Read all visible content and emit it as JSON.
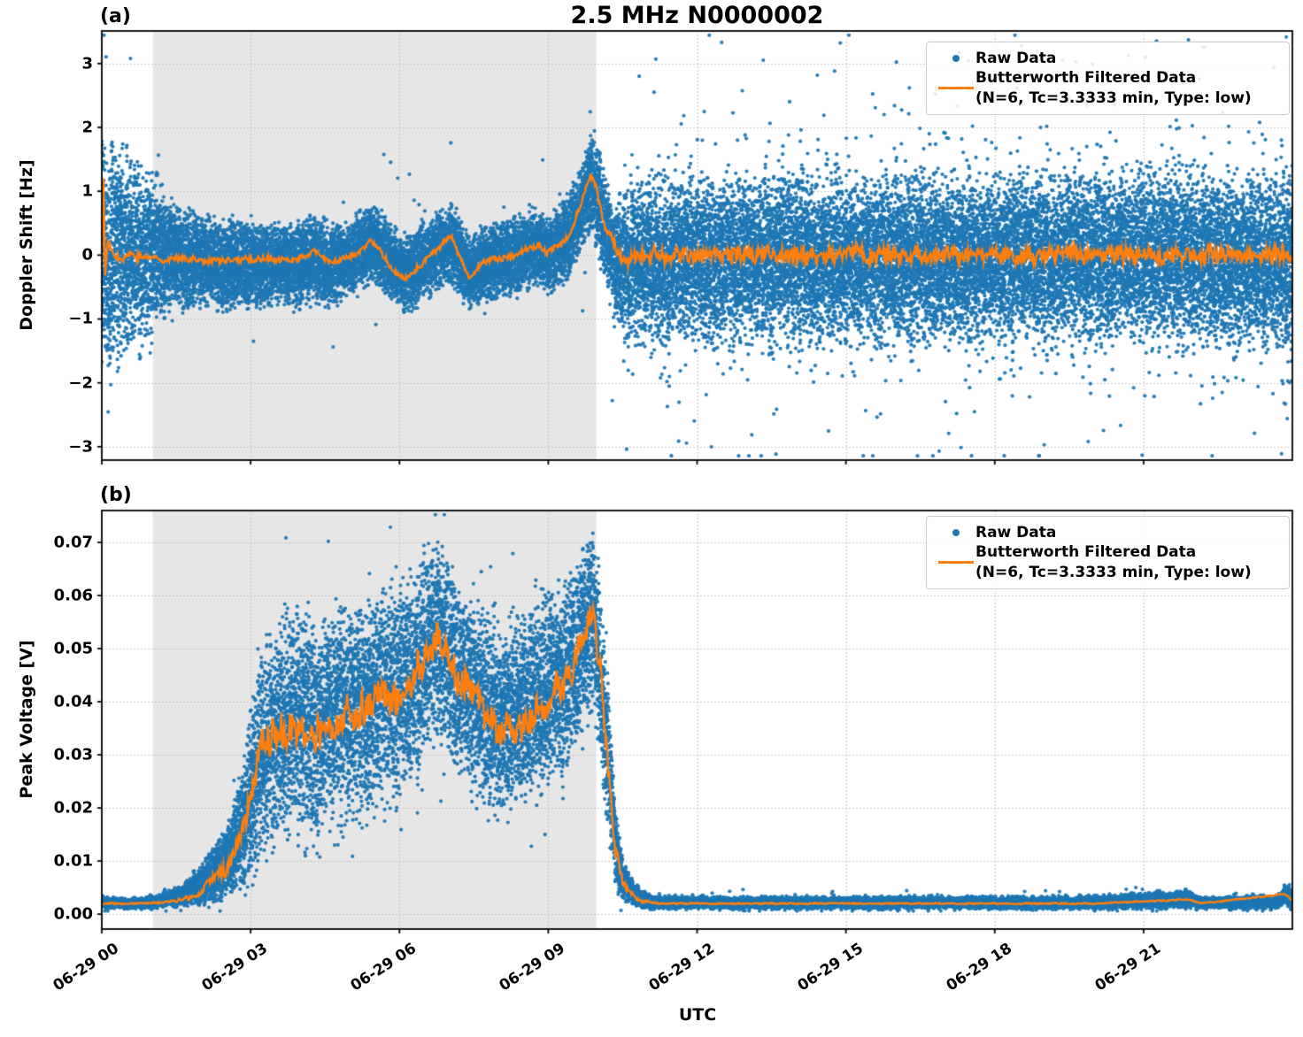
{
  "figure": {
    "background": "#ffffff",
    "title": "2.5 MHz N0000002"
  },
  "x_axis": {
    "label": "UTC",
    "xlim_hours": [
      0,
      24
    ],
    "ticks": [
      {
        "h": 0,
        "label": "06-29 00"
      },
      {
        "h": 3,
        "label": "06-29 03"
      },
      {
        "h": 6,
        "label": "06-29 06"
      },
      {
        "h": 9,
        "label": "06-29 09"
      },
      {
        "h": 12,
        "label": "06-29 12"
      },
      {
        "h": 15,
        "label": "06-29 15"
      },
      {
        "h": 18,
        "label": "06-29 18"
      },
      {
        "h": 21,
        "label": "06-29 21"
      }
    ]
  },
  "style": {
    "raw_color": "#1f77b4",
    "filtered_color": "#ff7f0e",
    "shade_color": "#e6e6e6",
    "grid_color": "#b9b9b9",
    "spine_color": "#000000"
  },
  "chart_data": [
    {
      "type": "scatter",
      "panel_label": "(a)",
      "title": "2.5 MHz N0000002",
      "ylabel": "Doppler Shift [Hz]",
      "ylim": [
        -3.21,
        3.51
      ],
      "grid": true,
      "legend_position": "upper right",
      "y_axis": {
        "ticks": [
          {
            "v": 3,
            "label": "3"
          },
          {
            "v": 2,
            "label": "2"
          },
          {
            "v": 1,
            "label": "1"
          },
          {
            "v": 0,
            "label": "0"
          },
          {
            "v": -1,
            "label": "−1"
          },
          {
            "v": -2,
            "label": "−2"
          },
          {
            "v": -3,
            "label": "−3"
          }
        ]
      },
      "shaded_region": {
        "t_start": 1.03,
        "t_end": 9.97
      },
      "legend": {
        "items": [
          {
            "marker": "dot",
            "label": "Raw Data"
          },
          {
            "marker": "line",
            "label": "Butterworth Filtered Data",
            "label2": "(N=6, Tc=3.3333 min, Type: low)"
          }
        ]
      },
      "series": {
        "raw_band_t_lo_hi": [
          [
            0,
            -2.15,
            2.0
          ],
          [
            0.3,
            -2.0,
            1.9
          ],
          [
            0.6,
            -1.85,
            1.8
          ],
          [
            0.9,
            -1.6,
            1.6
          ],
          [
            1.2,
            -1.25,
            1.25
          ],
          [
            1.5,
            -0.95,
            0.9
          ],
          [
            1.8,
            -0.8,
            0.65
          ],
          [
            2.2,
            -0.75,
            0.55
          ],
          [
            2.6,
            -0.9,
            0.55
          ],
          [
            3.0,
            -0.8,
            0.5
          ],
          [
            3.5,
            -0.75,
            0.45
          ],
          [
            4.0,
            -0.8,
            0.5
          ],
          [
            4.3,
            -0.62,
            0.6
          ],
          [
            4.6,
            -0.8,
            0.45
          ],
          [
            5.0,
            -0.65,
            0.5
          ],
          [
            5.45,
            -0.4,
            0.8
          ],
          [
            5.8,
            -0.65,
            0.45
          ],
          [
            6.1,
            -0.9,
            0.3
          ],
          [
            6.5,
            -0.65,
            0.45
          ],
          [
            7.05,
            -0.4,
            0.75
          ],
          [
            7.4,
            -0.85,
            0.3
          ],
          [
            7.8,
            -0.7,
            0.45
          ],
          [
            8.3,
            -0.6,
            0.55
          ],
          [
            8.68,
            -0.45,
            0.7
          ],
          [
            9.0,
            -0.55,
            0.6
          ],
          [
            9.3,
            -0.45,
            0.85
          ],
          [
            9.6,
            -0.2,
            1.2
          ],
          [
            9.87,
            0.45,
            1.9
          ],
          [
            10.0,
            0.1,
            1.6
          ],
          [
            10.15,
            -0.5,
            1.3
          ],
          [
            10.35,
            -1.2,
            0.9
          ],
          [
            10.6,
            -1.5,
            1.35
          ],
          [
            11.0,
            -1.6,
            1.45
          ],
          [
            12,
            -1.65,
            1.5
          ],
          [
            14,
            -1.65,
            1.55
          ],
          [
            16,
            -1.6,
            1.5
          ],
          [
            18,
            -1.65,
            1.5
          ],
          [
            20,
            -1.6,
            1.55
          ],
          [
            22,
            -1.65,
            1.5
          ],
          [
            24,
            -1.65,
            1.55
          ]
        ],
        "filtered_t_mean": [
          [
            0,
            -0.1
          ],
          [
            0.03,
            1.25
          ],
          [
            0.07,
            -0.35
          ],
          [
            0.12,
            0.15
          ],
          [
            0.3,
            -0.05
          ],
          [
            0.6,
            0.0
          ],
          [
            1.0,
            -0.05
          ],
          [
            1.5,
            -0.05
          ],
          [
            2.0,
            -0.08
          ],
          [
            2.5,
            -0.1
          ],
          [
            3.0,
            -0.05
          ],
          [
            3.5,
            -0.08
          ],
          [
            4.0,
            -0.05
          ],
          [
            4.3,
            0.05
          ],
          [
            4.6,
            -0.1
          ],
          [
            5.0,
            -0.05
          ],
          [
            5.45,
            0.22
          ],
          [
            5.7,
            -0.05
          ],
          [
            6.1,
            -0.4
          ],
          [
            6.5,
            -0.1
          ],
          [
            7.05,
            0.3
          ],
          [
            7.4,
            -0.38
          ],
          [
            7.7,
            -0.1
          ],
          [
            8.0,
            -0.05
          ],
          [
            8.3,
            0.0
          ],
          [
            8.68,
            0.16
          ],
          [
            9.0,
            0.07
          ],
          [
            9.3,
            0.18
          ],
          [
            9.5,
            0.45
          ],
          [
            9.7,
            0.9
          ],
          [
            9.85,
            1.28
          ],
          [
            9.95,
            1.1
          ],
          [
            10.1,
            0.55
          ],
          [
            10.3,
            0.2
          ],
          [
            10.5,
            -0.05
          ],
          [
            11.0,
            0.0
          ],
          [
            13,
            0.0
          ],
          [
            16,
            0.0
          ],
          [
            19,
            0.0
          ],
          [
            22,
            0.0
          ],
          [
            24,
            0.0
          ]
        ],
        "filtered_noise_amp": [
          [
            0,
            0.1
          ],
          [
            1,
            0.08
          ],
          [
            5,
            0.07
          ],
          [
            9,
            0.08
          ],
          [
            9.85,
            0.07
          ],
          [
            10.4,
            0.15
          ],
          [
            11,
            0.19
          ],
          [
            24,
            0.19
          ]
        ]
      }
    },
    {
      "type": "scatter",
      "panel_label": "(b)",
      "ylabel": "Peak Voltage [V]",
      "ylim": [
        -0.0028,
        0.076
      ],
      "grid": true,
      "legend_position": "upper right",
      "y_axis": {
        "ticks": [
          {
            "v": 0.07,
            "label": "0.07"
          },
          {
            "v": 0.06,
            "label": "0.06"
          },
          {
            "v": 0.05,
            "label": "0.05"
          },
          {
            "v": 0.04,
            "label": "0.04"
          },
          {
            "v": 0.03,
            "label": "0.03"
          },
          {
            "v": 0.02,
            "label": "0.02"
          },
          {
            "v": 0.01,
            "label": "0.01"
          },
          {
            "v": 0.0,
            "label": "0.00"
          }
        ]
      },
      "shaded_region": {
        "t_start": 1.03,
        "t_end": 9.97
      },
      "legend": {
        "items": [
          {
            "marker": "dot",
            "label": "Raw Data"
          },
          {
            "marker": "line",
            "label": "Butterworth Filtered Data",
            "label2": "(N=6, Tc=3.3333 min, Type: low)"
          }
        ]
      },
      "series": {
        "raw_band_t_lo_hi": [
          [
            0,
            0.0013,
            0.0028
          ],
          [
            0.8,
            0.0013,
            0.0028
          ],
          [
            1.2,
            0.0015,
            0.0035
          ],
          [
            1.6,
            0.002,
            0.005
          ],
          [
            2.0,
            0.002,
            0.009
          ],
          [
            2.3,
            0.003,
            0.013
          ],
          [
            2.6,
            0.004,
            0.018
          ],
          [
            2.9,
            0.006,
            0.032
          ],
          [
            3.1,
            0.009,
            0.045
          ],
          [
            3.3,
            0.012,
            0.05
          ],
          [
            3.6,
            0.014,
            0.055
          ],
          [
            4.0,
            0.015,
            0.057
          ],
          [
            4.4,
            0.016,
            0.054
          ],
          [
            4.8,
            0.018,
            0.058
          ],
          [
            5.2,
            0.02,
            0.059
          ],
          [
            5.6,
            0.021,
            0.06
          ],
          [
            6.0,
            0.022,
            0.061
          ],
          [
            6.4,
            0.028,
            0.065
          ],
          [
            6.75,
            0.034,
            0.071
          ],
          [
            7.0,
            0.03,
            0.066
          ],
          [
            7.4,
            0.025,
            0.06
          ],
          [
            7.8,
            0.02,
            0.056
          ],
          [
            8.1,
            0.018,
            0.054
          ],
          [
            8.5,
            0.021,
            0.056
          ],
          [
            9.0,
            0.025,
            0.059
          ],
          [
            9.4,
            0.028,
            0.063
          ],
          [
            9.75,
            0.035,
            0.069
          ],
          [
            9.9,
            0.04,
            0.071
          ],
          [
            10.05,
            0.03,
            0.062
          ],
          [
            10.2,
            0.015,
            0.045
          ],
          [
            10.35,
            0.006,
            0.02
          ],
          [
            10.5,
            0.003,
            0.01
          ],
          [
            10.7,
            0.002,
            0.006
          ],
          [
            10.9,
            0.0015,
            0.004
          ],
          [
            11.2,
            0.0013,
            0.003
          ],
          [
            14,
            0.0013,
            0.003
          ],
          [
            17,
            0.0013,
            0.003
          ],
          [
            20,
            0.0013,
            0.003
          ],
          [
            21.9,
            0.0015,
            0.0042
          ],
          [
            22.15,
            0.0013,
            0.003
          ],
          [
            23.7,
            0.0014,
            0.0032
          ],
          [
            23.85,
            0.002,
            0.0055
          ],
          [
            24,
            0.0015,
            0.0045
          ]
        ],
        "filtered_t_mean": [
          [
            0,
            0.002
          ],
          [
            1.0,
            0.002
          ],
          [
            1.5,
            0.0025
          ],
          [
            2.0,
            0.004
          ],
          [
            2.3,
            0.007
          ],
          [
            2.6,
            0.009
          ],
          [
            2.9,
            0.018
          ],
          [
            3.1,
            0.028
          ],
          [
            3.3,
            0.032
          ],
          [
            3.6,
            0.034
          ],
          [
            4.0,
            0.036
          ],
          [
            4.4,
            0.034
          ],
          [
            4.8,
            0.037
          ],
          [
            5.2,
            0.038
          ],
          [
            5.6,
            0.04
          ],
          [
            6.0,
            0.041
          ],
          [
            6.4,
            0.046
          ],
          [
            6.75,
            0.053
          ],
          [
            7.0,
            0.047
          ],
          [
            7.4,
            0.042
          ],
          [
            7.8,
            0.036
          ],
          [
            8.1,
            0.034
          ],
          [
            8.5,
            0.036
          ],
          [
            9.0,
            0.04
          ],
          [
            9.4,
            0.044
          ],
          [
            9.75,
            0.052
          ],
          [
            9.87,
            0.059
          ],
          [
            10.05,
            0.046
          ],
          [
            10.2,
            0.028
          ],
          [
            10.35,
            0.012
          ],
          [
            10.5,
            0.006
          ],
          [
            10.7,
            0.0035
          ],
          [
            10.9,
            0.0025
          ],
          [
            11.2,
            0.002
          ],
          [
            14,
            0.002
          ],
          [
            17,
            0.002
          ],
          [
            20,
            0.002
          ],
          [
            21.9,
            0.0028
          ],
          [
            22.15,
            0.002
          ],
          [
            23.85,
            0.0038
          ],
          [
            24,
            0.0025
          ]
        ],
        "filtered_noise_amp": [
          [
            0,
            0.0002
          ],
          [
            1.5,
            0.0003
          ],
          [
            2.3,
            0.0015
          ],
          [
            2.9,
            0.004
          ],
          [
            3.3,
            0.0055
          ],
          [
            6,
            0.005
          ],
          [
            9.5,
            0.005
          ],
          [
            9.9,
            0.0045
          ],
          [
            10.2,
            0.004
          ],
          [
            10.5,
            0.0012
          ],
          [
            10.9,
            0.0004
          ],
          [
            11.2,
            0.00018
          ],
          [
            24,
            0.00018
          ]
        ]
      }
    }
  ]
}
